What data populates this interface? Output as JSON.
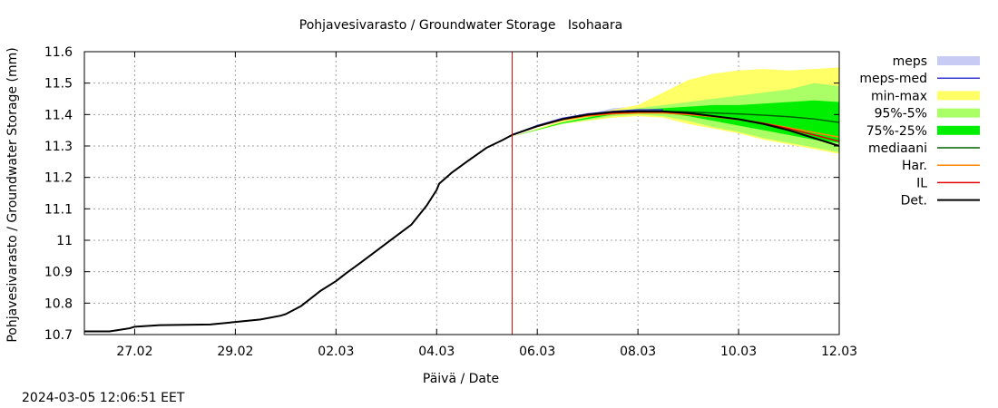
{
  "chart_data": {
    "type": "line",
    "title": "Pohjavesivarasto / Groundwater Storage   Isohaara",
    "xlabel": "Päivä / Date",
    "ylabel": "Pohjavesivarasto / Groundwater Storage (mm)",
    "timestamp": "2024-03-05 12:06:51 EET",
    "x_unit": "days since 26.02 00:00",
    "xlim": [
      0,
      15
    ],
    "ylim": [
      10.7,
      11.6
    ],
    "grid": true,
    "forecast_start_x": 8.5,
    "x_ticks": [
      {
        "x": 1,
        "label": "27.02"
      },
      {
        "x": 3,
        "label": "29.02"
      },
      {
        "x": 5,
        "label": "02.03"
      },
      {
        "x": 7,
        "label": "04.03"
      },
      {
        "x": 9,
        "label": "06.03"
      },
      {
        "x": 11,
        "label": "08.03"
      },
      {
        "x": 13,
        "label": "10.03"
      },
      {
        "x": 15,
        "label": "12.03"
      }
    ],
    "y_ticks": [
      {
        "y": 10.7,
        "label": "10.7"
      },
      {
        "y": 10.8,
        "label": "10.8"
      },
      {
        "y": 10.9,
        "label": "10.9"
      },
      {
        "y": 11.0,
        "label": "11"
      },
      {
        "y": 11.1,
        "label": "11.1"
      },
      {
        "y": 11.2,
        "label": "11.2"
      },
      {
        "y": 11.3,
        "label": "11.3"
      },
      {
        "y": 11.4,
        "label": "11.4"
      },
      {
        "y": 11.5,
        "label": "11.5"
      },
      {
        "y": 11.6,
        "label": "11.6"
      }
    ],
    "legend_position": "right",
    "legend": [
      {
        "key": "meps",
        "label": "meps",
        "kind": "box",
        "color": "#c8ccf4"
      },
      {
        "key": "meps_med",
        "label": "meps-med",
        "kind": "line",
        "color": "#3a3ad0"
      },
      {
        "key": "minmax",
        "label": "min-max",
        "kind": "box",
        "color": "#ffff66"
      },
      {
        "key": "p95_5",
        "label": "95%-5%",
        "kind": "box",
        "color": "#aaff66"
      },
      {
        "key": "p75_25",
        "label": "75%-25%",
        "kind": "box",
        "color": "#00ee00"
      },
      {
        "key": "mediaani",
        "label": "mediaani",
        "kind": "line",
        "color": "#006400"
      },
      {
        "key": "har",
        "label": "Har.",
        "kind": "line",
        "color": "#ff8800"
      },
      {
        "key": "il",
        "label": "IL",
        "kind": "line",
        "color": "#e00000"
      },
      {
        "key": "det",
        "label": "Det.",
        "kind": "line",
        "color": "#000000"
      }
    ],
    "bands": [
      {
        "key": "meps",
        "x": [
          8.5,
          9.5,
          10.5,
          11.0,
          11.5
        ],
        "lower": [
          11.33,
          11.37,
          11.4,
          11.41,
          11.41
        ],
        "upper": [
          11.33,
          11.38,
          11.42,
          11.425,
          11.42
        ]
      },
      {
        "key": "minmax",
        "x": [
          8.5,
          9.5,
          10.5,
          11.0,
          11.5,
          12.0,
          12.5,
          13.0,
          13.5,
          14.0,
          14.5,
          15.0
        ],
        "lower": [
          11.33,
          11.37,
          11.39,
          11.395,
          11.39,
          11.37,
          11.355,
          11.34,
          11.32,
          11.305,
          11.29,
          11.275
        ],
        "upper": [
          11.33,
          11.38,
          11.415,
          11.43,
          11.47,
          11.51,
          11.53,
          11.54,
          11.545,
          11.54,
          11.545,
          11.55
        ]
      },
      {
        "key": "p95_5",
        "x": [
          8.5,
          9.5,
          10.5,
          11.0,
          11.5,
          12.0,
          12.5,
          13.0,
          13.5,
          14.0,
          14.5,
          15.0
        ],
        "lower": [
          11.33,
          11.37,
          11.395,
          11.4,
          11.395,
          11.38,
          11.36,
          11.345,
          11.325,
          11.31,
          11.295,
          11.28
        ],
        "upper": [
          11.33,
          11.375,
          11.41,
          11.42,
          11.43,
          11.44,
          11.45,
          11.46,
          11.47,
          11.48,
          11.5,
          11.49
        ]
      },
      {
        "key": "p75_25",
        "x": [
          8.5,
          9.5,
          10.5,
          11.0,
          11.5,
          12.0,
          12.5,
          13.0,
          13.5,
          14.0,
          14.5,
          15.0
        ],
        "lower": [
          11.33,
          11.372,
          11.4,
          11.408,
          11.405,
          11.395,
          11.38,
          11.365,
          11.35,
          11.335,
          11.32,
          11.31
        ],
        "upper": [
          11.33,
          11.375,
          11.405,
          11.415,
          11.42,
          11.425,
          11.43,
          11.43,
          11.435,
          11.44,
          11.445,
          11.44
        ]
      }
    ],
    "series": [
      {
        "key": "det",
        "name": "Det.",
        "x": [
          0,
          0.5,
          0.9,
          1.0,
          1.5,
          2.0,
          2.5,
          3.0,
          3.5,
          3.9,
          4.0,
          4.3,
          4.7,
          5.0,
          5.2,
          5.5,
          6.0,
          6.5,
          6.8,
          7.0,
          7.05,
          7.3,
          7.6,
          8.0,
          8.3,
          8.5,
          9.0,
          9.5,
          10.0,
          10.5,
          11.0,
          11.5,
          12.0,
          12.5,
          13.0,
          13.5,
          14.0,
          14.5,
          15.0
        ],
        "values": [
          10.71,
          10.71,
          10.72,
          10.725,
          10.73,
          10.731,
          10.732,
          10.74,
          10.748,
          10.76,
          10.765,
          10.79,
          10.84,
          10.87,
          10.895,
          10.93,
          10.99,
          11.05,
          11.11,
          11.16,
          11.18,
          11.215,
          11.25,
          11.295,
          11.318,
          11.335,
          11.363,
          11.385,
          11.4,
          11.408,
          11.41,
          11.41,
          11.405,
          11.395,
          11.385,
          11.37,
          11.35,
          11.325,
          11.3
        ]
      },
      {
        "key": "il",
        "name": "IL",
        "x": [
          8.5,
          9.0,
          9.5,
          10.0,
          10.5,
          11.0,
          11.5,
          12.0,
          12.5,
          13.0,
          13.5,
          14.0,
          14.5,
          15.0
        ],
        "values": [
          11.335,
          11.363,
          11.385,
          11.398,
          11.405,
          11.408,
          11.408,
          11.403,
          11.395,
          11.385,
          11.372,
          11.355,
          11.335,
          11.315
        ]
      },
      {
        "key": "har",
        "name": "Har.",
        "x": [
          8.5,
          9.0,
          9.5,
          10.0,
          10.5,
          11.0,
          11.5,
          12.0,
          12.5,
          13.0,
          13.5,
          14.0,
          14.5,
          15.0
        ],
        "values": [
          11.335,
          11.362,
          11.383,
          11.395,
          11.402,
          11.405,
          11.405,
          11.4,
          11.393,
          11.384,
          11.372,
          11.358,
          11.343,
          11.328
        ]
      },
      {
        "key": "meps_med",
        "name": "meps-med",
        "x": [
          8.5,
          9.0,
          9.5,
          10.0,
          10.5,
          11.0,
          11.5
        ],
        "values": [
          11.335,
          11.365,
          11.388,
          11.402,
          11.41,
          11.415,
          11.415
        ]
      },
      {
        "key": "mediaani",
        "name": "mediaani",
        "x": [
          8.5,
          9.0,
          9.5,
          10.0,
          10.5,
          11.0,
          11.5,
          12.0,
          12.5,
          13.0,
          13.5,
          14.0,
          14.5,
          15.0
        ],
        "values": [
          11.335,
          11.364,
          11.386,
          11.4,
          11.407,
          11.41,
          11.41,
          11.408,
          11.405,
          11.402,
          11.398,
          11.393,
          11.386,
          11.375
        ]
      }
    ]
  }
}
